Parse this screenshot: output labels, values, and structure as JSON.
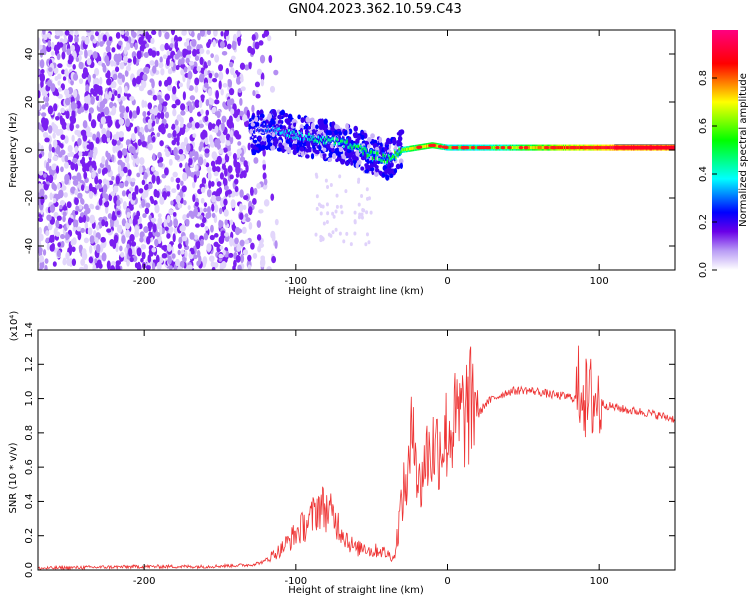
{
  "title": "GN04.2023.362.10.59.C43",
  "chart_data": [
    {
      "type": "heatmap",
      "xlabel": "Height of straight line (km)",
      "ylabel": "Frequency (Hz)",
      "xlim": [
        -270,
        150
      ],
      "ylim": [
        -50,
        50
      ],
      "xticks": [
        -200,
        -100,
        0,
        100
      ],
      "yticks": [
        -40,
        -20,
        0,
        20,
        40
      ],
      "colorbar": {
        "label": "Normalized spectral amplitude",
        "range": [
          0.0,
          1.0
        ],
        "ticks": [
          "0.0",
          "0.2",
          "0.4",
          "0.6",
          "0.8"
        ],
        "colors": [
          "#ffffff",
          "#6a00e8",
          "#0000ff",
          "#00ffff",
          "#00ff00",
          "#ffff00",
          "#ff0000",
          "#ff0080"
        ]
      },
      "signal_track": {
        "x": [
          -130,
          -120,
          -110,
          -100,
          -90,
          -80,
          -70,
          -60,
          -50,
          -40,
          -30,
          -20,
          -10,
          0,
          10,
          20,
          40,
          60,
          80,
          100,
          120,
          150
        ],
        "y": [
          6,
          9,
          8,
          6,
          5,
          4,
          3,
          1,
          -2,
          -4,
          0,
          1,
          2,
          1,
          1,
          1,
          1,
          1,
          1,
          1,
          1,
          1
        ],
        "amplitude": [
          0.15,
          0.2,
          0.3,
          0.35,
          0.35,
          0.4,
          0.4,
          0.45,
          0.45,
          0.45,
          0.55,
          0.65,
          0.7,
          0.55,
          0.55,
          0.55,
          0.6,
          0.7,
          0.8,
          0.85,
          0.9,
          0.9
        ]
      },
      "noise_extent_x": [
        -270,
        -120
      ]
    },
    {
      "type": "line",
      "xlabel": "Height of straight line (km)",
      "ylabel": "SNR (10 * v/v)",
      "scale_label": "(x10⁴)",
      "xlim": [
        -270,
        150
      ],
      "ylim": [
        0,
        1.4
      ],
      "xticks": [
        -200,
        -100,
        0,
        100
      ],
      "yticks": [
        "0.0",
        "0.2",
        "0.4",
        "0.6",
        "0.8",
        "1.0",
        "1.2",
        "1.4"
      ],
      "series": [
        {
          "color": "#ee3333",
          "x": [
            -270,
            -240,
            -200,
            -160,
            -130,
            -120,
            -110,
            -100,
            -90,
            -85,
            -80,
            -75,
            -70,
            -65,
            -60,
            -55,
            -50,
            -45,
            -40,
            -35,
            -30,
            -25,
            -22,
            -20,
            -18,
            -15,
            -10,
            -5,
            0,
            5,
            10,
            15,
            20,
            25,
            30,
            40,
            50,
            60,
            70,
            80,
            85,
            88,
            90,
            92,
            95,
            98,
            100,
            105,
            110,
            120,
            130,
            140,
            150
          ],
          "y": [
            0.01,
            0.015,
            0.02,
            0.02,
            0.03,
            0.05,
            0.1,
            0.18,
            0.25,
            0.32,
            0.3,
            0.26,
            0.2,
            0.14,
            0.1,
            0.12,
            0.09,
            0.1,
            0.08,
            0.06,
            0.35,
            0.5,
            0.85,
            0.45,
            0.4,
            0.55,
            0.6,
            0.62,
            0.68,
            0.72,
            0.76,
            0.8,
            0.9,
            0.97,
            1.0,
            1.04,
            1.05,
            1.04,
            1.02,
            1.01,
            1.0,
            1.1,
            1.05,
            0.95,
            1.0,
            1.0,
            0.98,
            0.96,
            0.95,
            0.93,
            0.92,
            0.9,
            0.88
          ]
        }
      ]
    }
  ]
}
